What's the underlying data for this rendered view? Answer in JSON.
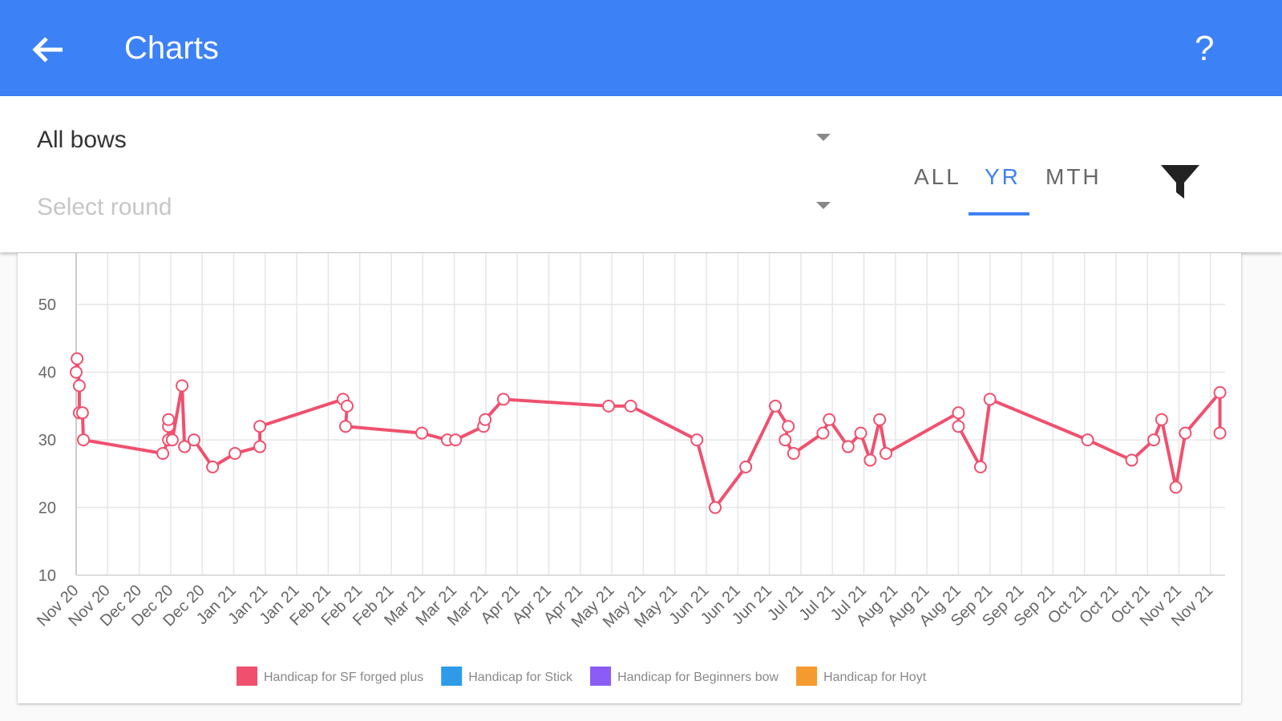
{
  "app_bar": {
    "title": "Charts",
    "help": "?"
  },
  "filters": {
    "bow": "All bows",
    "round_placeholder": "Select round",
    "tabs": [
      "ALL",
      "YR",
      "MTH"
    ],
    "selected_tab": 1
  },
  "chart_data": {
    "type": "line",
    "series": [
      {
        "name": "Handicap for SF forged plus",
        "color": "#f0506e",
        "x": [
          0,
          0.03,
          0.1,
          0.1,
          0.2,
          0.23,
          2.75,
          2.93,
          2.93,
          2.93,
          3.05,
          3.36,
          3.44,
          3.74,
          4.33,
          5.04,
          5.83,
          5.83,
          8.47,
          8.6,
          8.55,
          10.97,
          11.78,
          12.04,
          12.93,
          12.98,
          13.56,
          16.9,
          17.6,
          19.7,
          20.28,
          21.25,
          22.19,
          22.6,
          22.5,
          22.77,
          23.7,
          23.9,
          24.5,
          24.9,
          25.2,
          25.5,
          25.7,
          28.0,
          28.0,
          28.7,
          29.0,
          32.1,
          33.5,
          34.2,
          34.45,
          34.9,
          35.2,
          36.3,
          36.3
        ],
        "values": [
          40,
          42,
          38,
          34,
          34,
          30,
          28,
          30,
          32,
          33,
          30,
          38,
          29,
          30,
          26,
          28,
          29,
          32,
          36,
          35,
          32,
          31,
          30,
          30,
          32,
          33,
          36,
          35,
          35,
          30,
          20,
          26,
          35,
          32,
          30,
          28,
          31,
          33,
          29,
          31,
          27,
          33,
          28,
          34,
          32,
          26,
          36,
          30,
          27,
          30,
          33,
          23,
          31,
          37,
          31
        ]
      },
      {
        "name": "Handicap for Stick",
        "color": "#2d9be8",
        "x": [],
        "values": []
      },
      {
        "name": "Handicap for Beginners bow",
        "color": "#8b5cf6",
        "x": [],
        "values": []
      },
      {
        "name": "Handicap for Hoyt",
        "color": "#f59a2e",
        "x": [],
        "values": []
      }
    ],
    "xlim": [
      -0.1,
      36.5
    ],
    "xticks": [
      {
        "value": 0,
        "label": "Nov 20"
      },
      {
        "value": 1,
        "label": "Nov 20"
      },
      {
        "value": 2,
        "label": "Dec 20"
      },
      {
        "value": 3,
        "label": "Dec 20"
      },
      {
        "value": 4,
        "label": "Dec 20"
      },
      {
        "value": 5,
        "label": "Jan 21"
      },
      {
        "value": 6,
        "label": "Jan 21"
      },
      {
        "value": 7,
        "label": "Jan 21"
      },
      {
        "value": 8,
        "label": "Feb 21"
      },
      {
        "value": 9,
        "label": "Feb 21"
      },
      {
        "value": 10,
        "label": "Feb 21"
      },
      {
        "value": 11,
        "label": "Mar 21"
      },
      {
        "value": 12,
        "label": "Mar 21"
      },
      {
        "value": 13,
        "label": "Mar 21"
      },
      {
        "value": 14,
        "label": "Apr 21"
      },
      {
        "value": 15,
        "label": "Apr 21"
      },
      {
        "value": 16,
        "label": "Apr 21"
      },
      {
        "value": 17,
        "label": "May 21"
      },
      {
        "value": 18,
        "label": "May 21"
      },
      {
        "value": 19,
        "label": "May 21"
      },
      {
        "value": 20,
        "label": "Jun 21"
      },
      {
        "value": 21,
        "label": "Jun 21"
      },
      {
        "value": 22,
        "label": "Jun 21"
      },
      {
        "value": 23,
        "label": "Jul 21"
      },
      {
        "value": 24,
        "label": "Jul 21"
      },
      {
        "value": 25,
        "label": "Jul 21"
      },
      {
        "value": 26,
        "label": "Aug 21"
      },
      {
        "value": 27,
        "label": "Aug 21"
      },
      {
        "value": 28,
        "label": "Aug 21"
      },
      {
        "value": 29,
        "label": "Sep 21"
      },
      {
        "value": 30,
        "label": "Sep 21"
      },
      {
        "value": 31,
        "label": "Sep 21"
      },
      {
        "value": 32,
        "label": "Oct 21"
      },
      {
        "value": 33,
        "label": "Oct 21"
      },
      {
        "value": 34,
        "label": "Oct 21"
      },
      {
        "value": 35,
        "label": "Nov 21"
      },
      {
        "value": 36,
        "label": "Nov 21"
      }
    ],
    "ylim": [
      10,
      57.6
    ],
    "yticks": [
      10,
      20,
      30,
      40,
      50
    ],
    "grid": true
  }
}
